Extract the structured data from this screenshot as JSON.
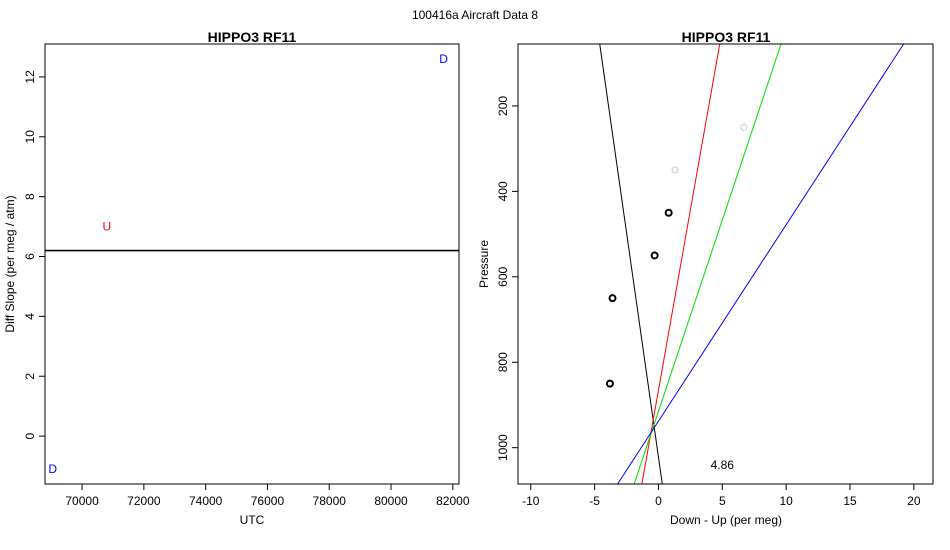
{
  "suptitle": "100416a   Aircraft Data 8",
  "chart_data": [
    {
      "type": "scatter",
      "title": "HIPPO3 RF11",
      "xlabel": "UTC",
      "ylabel": "Diff Slope (per meg / atm)",
      "xlim": [
        68800,
        82200
      ],
      "ylim": [
        -1.6,
        13.1
      ],
      "xticks": [
        70000,
        72000,
        74000,
        76000,
        78000,
        80000,
        82000
      ],
      "yticks": [
        0,
        2,
        4,
        6,
        8,
        10,
        12
      ],
      "hline": 6.2,
      "points": [
        {
          "x": 69050,
          "y": -1.1,
          "label": "D",
          "color": "#0000ff"
        },
        {
          "x": 70800,
          "y": 7.0,
          "label": "U",
          "color": "#ff0000"
        },
        {
          "x": 81700,
          "y": 12.6,
          "label": "D",
          "color": "#0000ff"
        }
      ]
    },
    {
      "type": "scatter",
      "title": "HIPPO3 RF11",
      "xlabel": "Down - Up (per meg)",
      "ylabel": "Pressure",
      "xlim": [
        -11,
        21.5
      ],
      "ylim": [
        1085,
        55
      ],
      "xticks": [
        -10,
        -5,
        0,
        5,
        10,
        15,
        20
      ],
      "yticks": [
        200,
        400,
        600,
        800,
        1000
      ],
      "annotation": {
        "text": "4.86",
        "x": 5,
        "y": 1040
      },
      "points": [
        {
          "x": 0.8,
          "y": 450,
          "color": "#000000"
        },
        {
          "x": -0.3,
          "y": 550,
          "color": "#000000"
        },
        {
          "x": -3.6,
          "y": 650,
          "color": "#000000"
        },
        {
          "x": -3.8,
          "y": 850,
          "color": "#000000"
        },
        {
          "x": 1.3,
          "y": 350,
          "color": "#c8c8c8"
        },
        {
          "x": 6.7,
          "y": 250,
          "color": "#c8c8c8"
        }
      ],
      "lines": [
        {
          "color": "#000000",
          "x1": -4.6,
          "y1": 55,
          "x2": 0.3,
          "y2": 1085
        },
        {
          "color": "#ff0000",
          "x1": 4.8,
          "y1": 55,
          "x2": -1.3,
          "y2": 1085
        },
        {
          "color": "#00dd00",
          "x1": 9.6,
          "y1": 55,
          "x2": -1.9,
          "y2": 1085
        },
        {
          "color": "#0000ff",
          "x1": 19.2,
          "y1": 55,
          "x2": -3.2,
          "y2": 1085
        }
      ]
    }
  ]
}
